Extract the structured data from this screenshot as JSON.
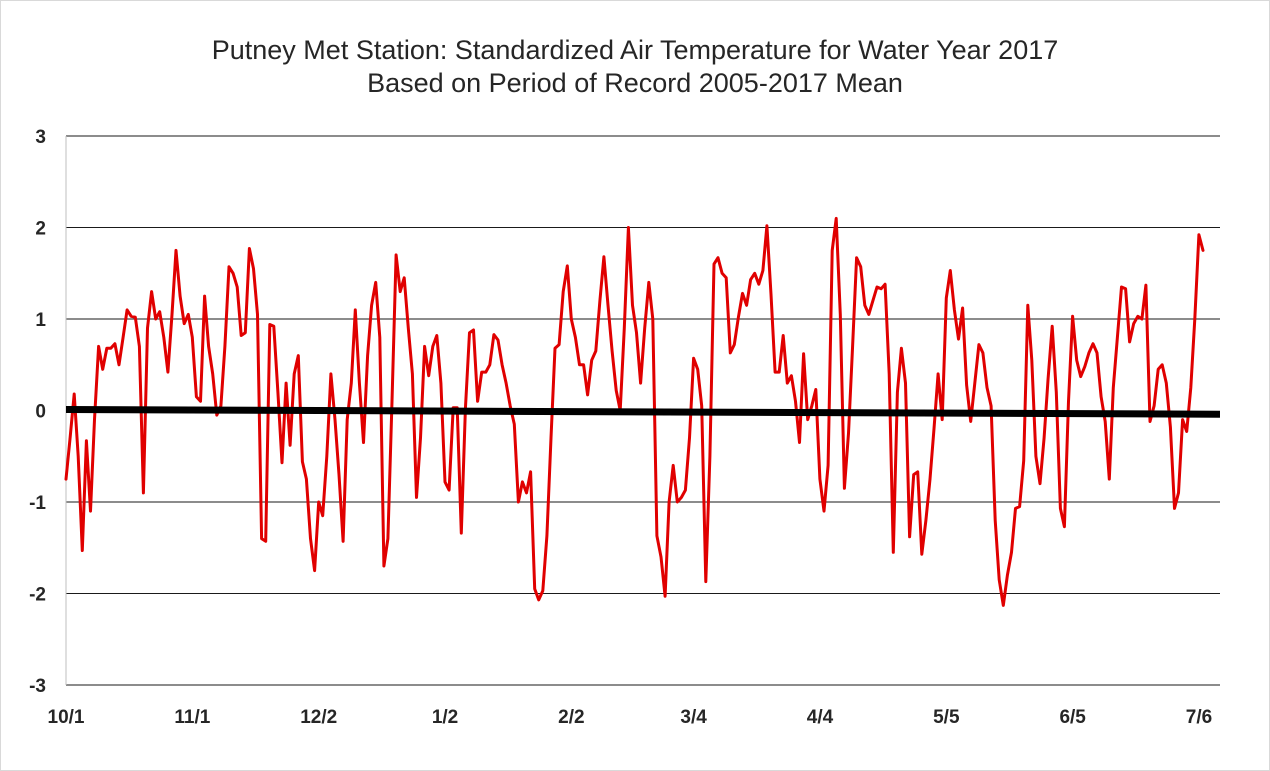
{
  "chart_data": {
    "type": "line",
    "title": "Putney Met Station: Standardized Air Temperature for Water Year 2017",
    "subtitle": "Based on Period of Record 2005-2017 Mean",
    "xlabel": "",
    "ylabel": "",
    "ylim": [
      -3,
      3
    ],
    "yticks": [
      "3",
      "2",
      "1",
      "0",
      "-1",
      "-2",
      "-3"
    ],
    "xticks": [
      "10/1",
      "11/1",
      "12/2",
      "1/2",
      "2/2",
      "3/4",
      "4/4",
      "5/5",
      "6/5",
      "7/6"
    ],
    "grid": true,
    "legend": "none",
    "line_color": "#e00000",
    "zero_line_color": "#000000",
    "series": [
      {
        "values": [
          -0.75,
          -0.3,
          0.18,
          -0.5,
          -1.53,
          -0.33,
          -1.1,
          -0.1,
          0.7,
          0.45,
          0.68,
          0.68,
          0.73,
          0.5,
          0.8,
          1.1,
          1.03,
          1.02,
          0.7,
          -0.9,
          0.9,
          1.3,
          1.0,
          1.08,
          0.8,
          0.42,
          1.05,
          1.75,
          1.25,
          0.95,
          1.05,
          0.8,
          0.15,
          0.1,
          1.25,
          0.7,
          0.4,
          -0.05,
          0.05,
          0.7,
          1.57,
          1.5,
          1.35,
          0.82,
          0.85,
          1.77,
          1.55,
          1.05,
          -1.4,
          -1.43,
          0.94,
          0.92,
          0.2,
          -0.57,
          0.3,
          -0.38,
          0.4,
          0.6,
          -0.56,
          -0.75,
          -1.4,
          -1.75,
          -1.0,
          -1.15,
          -0.5,
          0.4,
          -0.1,
          -0.7,
          -1.43,
          -0.1,
          0.3,
          1.1,
          0.3,
          -0.35,
          0.6,
          1.15,
          1.4,
          0.8,
          -1.7,
          -1.4,
          0.1,
          1.7,
          1.3,
          1.45,
          0.9,
          0.4,
          -0.95,
          -0.3,
          0.7,
          0.38,
          0.7,
          0.82,
          0.3,
          -0.78,
          -0.87,
          0.03,
          0.03,
          -1.34,
          0.02,
          0.85,
          0.88,
          0.1,
          0.42,
          0.42,
          0.5,
          0.83,
          0.77,
          0.5,
          0.3,
          0.05,
          -0.15,
          -1.0,
          -0.78,
          -0.9,
          -0.67,
          -1.95,
          -2.07,
          -1.97,
          -1.37,
          -0.3,
          0.68,
          0.72,
          1.3,
          1.58,
          1.0,
          0.8,
          0.5,
          0.5,
          0.17,
          0.55,
          0.65,
          1.2,
          1.68,
          1.15,
          0.65,
          0.22,
          0.0,
          0.9,
          2.0,
          1.15,
          0.85,
          0.3,
          0.9,
          1.4,
          1.0,
          -1.37,
          -1.6,
          -2.03,
          -1.0,
          -0.6,
          -1.0,
          -0.95,
          -0.87,
          -0.3,
          0.57,
          0.45,
          0.05,
          -1.87,
          -0.5,
          1.6,
          1.67,
          1.5,
          1.45,
          0.63,
          0.72,
          1.02,
          1.28,
          1.15,
          1.43,
          1.5,
          1.38,
          1.53,
          2.02,
          1.27,
          0.42,
          0.42,
          0.82,
          0.3,
          0.38,
          0.1,
          -0.35,
          0.62,
          -0.1,
          0.05,
          0.23,
          -0.75,
          -1.1,
          -0.6,
          1.75,
          2.1,
          1.05,
          -0.85,
          -0.25,
          0.68,
          1.67,
          1.57,
          1.15,
          1.05,
          1.2,
          1.35,
          1.33,
          1.38,
          0.4,
          -1.55,
          0.2,
          0.68,
          0.3,
          -1.38,
          -0.7,
          -0.67,
          -1.57,
          -1.2,
          -0.75,
          -0.2,
          0.4,
          -0.1,
          1.23,
          1.53,
          1.1,
          0.78,
          1.12,
          0.28,
          -0.12,
          0.3,
          0.72,
          0.63,
          0.25,
          0.05,
          -1.2,
          -1.85,
          -2.13,
          -1.8,
          -1.55,
          -1.07,
          -1.05,
          -0.55,
          1.15,
          0.55,
          -0.5,
          -0.8,
          -0.3,
          0.35,
          0.92,
          0.2,
          -1.07,
          -1.27,
          0.1,
          1.03,
          0.55,
          0.37,
          0.48,
          0.63,
          0.73,
          0.63,
          0.15,
          -0.12,
          -0.75,
          0.25,
          0.8,
          1.35,
          1.33,
          0.75,
          0.95,
          1.03,
          1.0,
          1.37,
          -0.12,
          0.05,
          0.45,
          0.5,
          0.3,
          -0.18,
          -1.07,
          -0.9,
          -0.1,
          -0.23,
          0.25,
          1.0,
          1.92,
          1.75
        ]
      }
    ]
  }
}
